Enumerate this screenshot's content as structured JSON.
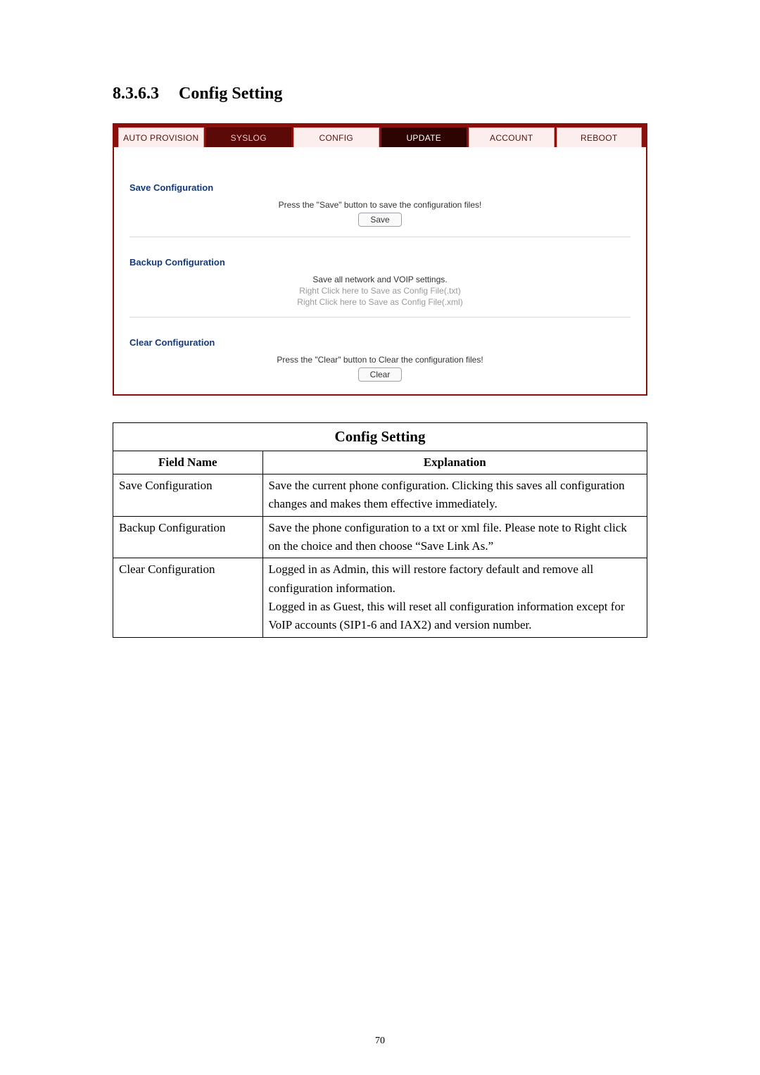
{
  "heading": {
    "number": "8.3.6.3",
    "title": "Config Setting"
  },
  "tabs": [
    {
      "label": "AUTO PROVISION",
      "kind": "light"
    },
    {
      "label": "SYSLOG",
      "kind": "dark"
    },
    {
      "label": "CONFIG",
      "kind": "light"
    },
    {
      "label": "UPDATE",
      "kind": "dark_sel"
    },
    {
      "label": "ACCOUNT",
      "kind": "light"
    },
    {
      "label": "REBOOT",
      "kind": "light"
    }
  ],
  "save_section": {
    "title": "Save Configuration",
    "text": "Press the \"Save\" button to save the configuration files!",
    "button": "Save"
  },
  "backup_section": {
    "title": "Backup Configuration",
    "line1": "Save all network and VOIP settings.",
    "line2": "Right Click here to Save as Config File(.txt)",
    "line3": "Right Click here to Save as Config File(.xml)"
  },
  "clear_section": {
    "title": "Clear Configuration",
    "text": "Press the \"Clear\" button to Clear the configuration files!",
    "button": "Clear"
  },
  "doc_table": {
    "title": "Config Setting",
    "col_field": "Field Name",
    "col_expl": "Explanation",
    "rows": [
      {
        "field": "Save Configuration",
        "expl": "Save the current phone configuration. Clicking this saves all configuration changes and makes them effective immediately."
      },
      {
        "field": "Backup Configuration",
        "expl": "Save the phone configuration to a txt or xml file.    Please note to Right click on the choice and then choose “Save Link As.”"
      },
      {
        "field": "Clear Configuration",
        "expl": "Logged in as Admin, this will restore factory default and remove all configuration information.\nLogged in as Guest, this will reset all configuration information except for VoIP accounts (SIP1-6 and IAX2) and version number."
      }
    ]
  },
  "page_number": "70",
  "colors": {
    "frame_border": "#8a0e0a",
    "tab_dark_bg": "#5c0a07",
    "tab_light_bg": "#fbeeec",
    "section_title": "#153a7a"
  }
}
